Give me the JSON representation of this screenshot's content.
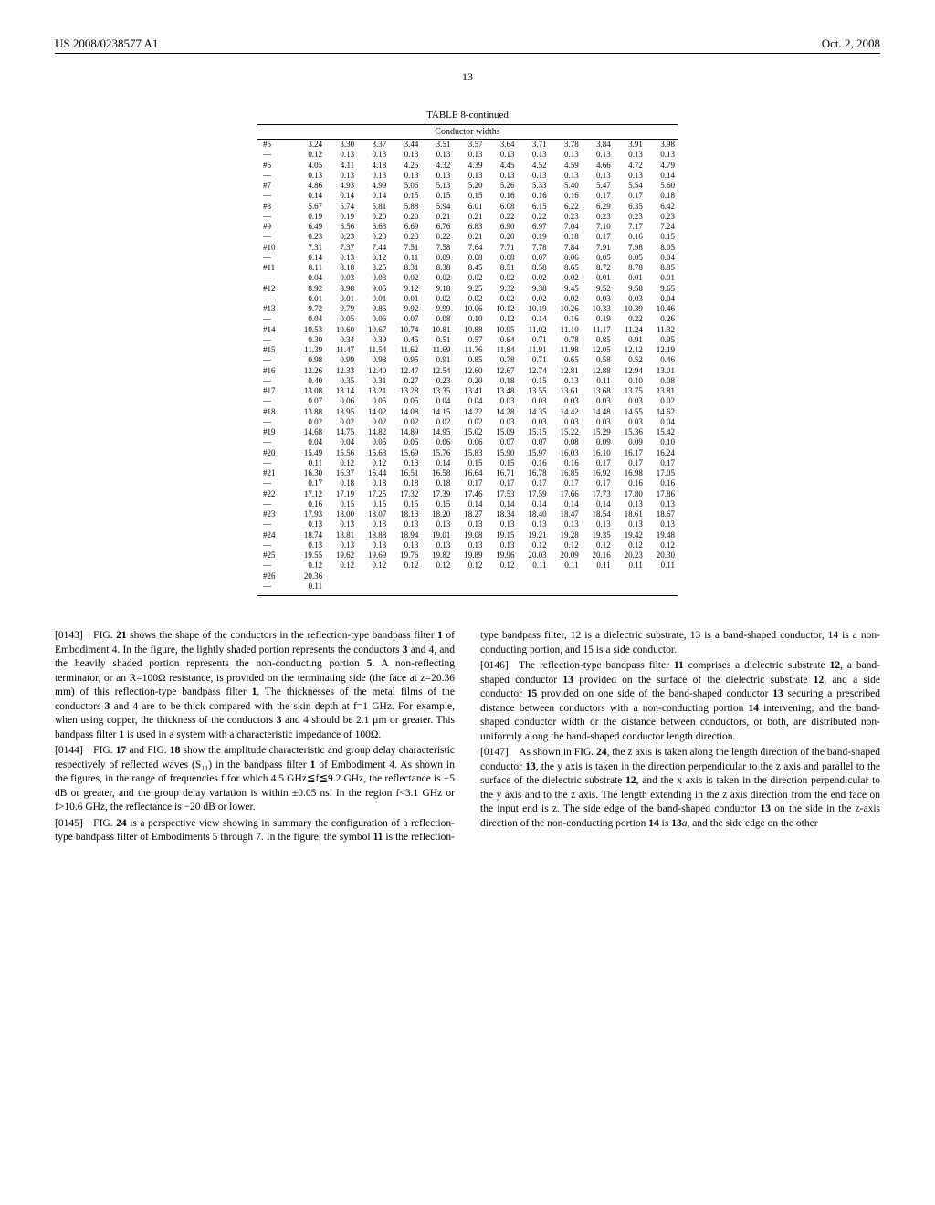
{
  "header": {
    "patent_id": "US 2008/0238577 A1",
    "date": "Oct. 2, 2008"
  },
  "page_number": "13",
  "table": {
    "title": "TABLE 8-continued",
    "subtitle": "Conductor widths",
    "rows": [
      {
        "label": "#5",
        "v": [
          "3.24",
          "3.30",
          "3.37",
          "3.44",
          "3.51",
          "3.57",
          "3.64",
          "3.71",
          "3.78",
          "3.84",
          "3.91",
          "3.98"
        ]
      },
      {
        "label": "—",
        "v": [
          "0.12",
          "0.13",
          "0.13",
          "0.13",
          "0.13",
          "0.13",
          "0.13",
          "0.13",
          "0.13",
          "0.13",
          "0.13",
          "0.13"
        ]
      },
      {
        "label": "#6",
        "v": [
          "4.05",
          "4.11",
          "4.18",
          "4.25",
          "4.32",
          "4.39",
          "4.45",
          "4.52",
          "4.59",
          "4.66",
          "4.72",
          "4.79"
        ]
      },
      {
        "label": "—",
        "v": [
          "0.13",
          "0.13",
          "0.13",
          "0.13",
          "0.13",
          "0.13",
          "0.13",
          "0.13",
          "0.13",
          "0.13",
          "0.13",
          "0.14"
        ]
      },
      {
        "label": "#7",
        "v": [
          "4.86",
          "4.93",
          "4.99",
          "5.06",
          "5.13",
          "5.20",
          "5.26",
          "5.33",
          "5.40",
          "5.47",
          "5.54",
          "5.60"
        ]
      },
      {
        "label": "—",
        "v": [
          "0.14",
          "0.14",
          "0.14",
          "0.15",
          "0.15",
          "0.15",
          "0.16",
          "0.16",
          "0.16",
          "0.17",
          "0.17",
          "0.18"
        ]
      },
      {
        "label": "#8",
        "v": [
          "5.67",
          "5.74",
          "5.81",
          "5.88",
          "5.94",
          "6.01",
          "6.08",
          "6.15",
          "6.22",
          "6.29",
          "6.35",
          "6.42"
        ]
      },
      {
        "label": "—",
        "v": [
          "0.19",
          "0.19",
          "0.20",
          "0.20",
          "0.21",
          "0.21",
          "0.22",
          "0.22",
          "0.23",
          "0.23",
          "0.23",
          "0.23"
        ]
      },
      {
        "label": "#9",
        "v": [
          "6.49",
          "6.56",
          "6.63",
          "6.69",
          "6.76",
          "6.83",
          "6.90",
          "6.97",
          "7.04",
          "7.10",
          "7.17",
          "7.24"
        ]
      },
      {
        "label": "—",
        "v": [
          "0.23",
          "0.23",
          "0.23",
          "0.23",
          "0.22",
          "0.21",
          "0.20",
          "0.19",
          "0.18",
          "0.17",
          "0.16",
          "0.15"
        ]
      },
      {
        "label": "#10",
        "v": [
          "7.31",
          "7.37",
          "7.44",
          "7.51",
          "7.58",
          "7.64",
          "7.71",
          "7.78",
          "7.84",
          "7.91",
          "7.98",
          "8.05"
        ]
      },
      {
        "label": "—",
        "v": [
          "0.14",
          "0.13",
          "0.12",
          "0.11",
          "0.09",
          "0.08",
          "0.08",
          "0.07",
          "0.06",
          "0.05",
          "0.05",
          "0.04"
        ]
      },
      {
        "label": "#11",
        "v": [
          "8.11",
          "8.18",
          "8.25",
          "8.31",
          "8.38",
          "8.45",
          "8.51",
          "8.58",
          "8.65",
          "8.72",
          "8.78",
          "8.85"
        ]
      },
      {
        "label": "—",
        "v": [
          "0.04",
          "0.03",
          "0.03",
          "0.02",
          "0.02",
          "0.02",
          "0.02",
          "0.02",
          "0.02",
          "0.01",
          "0.01",
          "0.01"
        ]
      },
      {
        "label": "#12",
        "v": [
          "8.92",
          "8.98",
          "9.05",
          "9.12",
          "9.18",
          "9.25",
          "9.32",
          "9.38",
          "9.45",
          "9.52",
          "9.58",
          "9.65"
        ]
      },
      {
        "label": "—",
        "v": [
          "0.01",
          "0.01",
          "0.01",
          "0.01",
          "0.02",
          "0.02",
          "0.02",
          "0.02",
          "0.02",
          "0.03",
          "0.03",
          "0.04"
        ]
      },
      {
        "label": "#13",
        "v": [
          "9.72",
          "9.79",
          "9.85",
          "9.92",
          "9.99",
          "10.06",
          "10.12",
          "10.19",
          "10.26",
          "10.33",
          "10.39",
          "10.46"
        ]
      },
      {
        "label": "—",
        "v": [
          "0.04",
          "0.05",
          "0.06",
          "0.07",
          "0.08",
          "0.10",
          "0.12",
          "0.14",
          "0.16",
          "0.19",
          "0.22",
          "0.26"
        ]
      },
      {
        "label": "#14",
        "v": [
          "10.53",
          "10.60",
          "10.67",
          "10.74",
          "10.81",
          "10.88",
          "10.95",
          "11.02",
          "11.10",
          "11.17",
          "11.24",
          "11.32"
        ]
      },
      {
        "label": "—",
        "v": [
          "0.30",
          "0.34",
          "0.39",
          "0.45",
          "0.51",
          "0.57",
          "0.64",
          "0.71",
          "0.78",
          "0.85",
          "0.91",
          "0.95"
        ]
      },
      {
        "label": "#15",
        "v": [
          "11.39",
          "11.47",
          "11.54",
          "11.62",
          "11.69",
          "11.76",
          "11.84",
          "11.91",
          "11.98",
          "12.05",
          "12.12",
          "12.19"
        ]
      },
      {
        "label": "—",
        "v": [
          "0.98",
          "0.99",
          "0.98",
          "0.95",
          "0.91",
          "0.85",
          "0.78",
          "0.71",
          "0.65",
          "0.58",
          "0.52",
          "0.46"
        ]
      },
      {
        "label": "#16",
        "v": [
          "12.26",
          "12.33",
          "12.40",
          "12.47",
          "12.54",
          "12.60",
          "12.67",
          "12.74",
          "12.81",
          "12.88",
          "12.94",
          "13.01"
        ]
      },
      {
        "label": "—",
        "v": [
          "0.40",
          "0.35",
          "0.31",
          "0.27",
          "0.23",
          "0.20",
          "0.18",
          "0.15",
          "0.13",
          "0.11",
          "0.10",
          "0.08"
        ]
      },
      {
        "label": "#17",
        "v": [
          "13.08",
          "13.14",
          "13.21",
          "13.28",
          "13.35",
          "13.41",
          "13.48",
          "13.55",
          "13.61",
          "13.68",
          "13.75",
          "13.81"
        ]
      },
      {
        "label": "—",
        "v": [
          "0.07",
          "0.06",
          "0.05",
          "0.05",
          "0.04",
          "0.04",
          "0.03",
          "0.03",
          "0.03",
          "0.03",
          "0.03",
          "0.02"
        ]
      },
      {
        "label": "#18",
        "v": [
          "13.88",
          "13.95",
          "14.02",
          "14.08",
          "14.15",
          "14.22",
          "14.28",
          "14.35",
          "14.42",
          "14.48",
          "14.55",
          "14.62"
        ]
      },
      {
        "label": "—",
        "v": [
          "0.02",
          "0.02",
          "0.02",
          "0.02",
          "0.02",
          "0.02",
          "0.03",
          "0.03",
          "0.03",
          "0.03",
          "0.03",
          "0.04"
        ]
      },
      {
        "label": "#19",
        "v": [
          "14.68",
          "14.75",
          "14.82",
          "14.89",
          "14.95",
          "15.02",
          "15.09",
          "15.15",
          "15.22",
          "15.29",
          "15.36",
          "15.42"
        ]
      },
      {
        "label": "—",
        "v": [
          "0.04",
          "0.04",
          "0.05",
          "0.05",
          "0.06",
          "0.06",
          "0.07",
          "0.07",
          "0.08",
          "0.09",
          "0.09",
          "0.10"
        ]
      },
      {
        "label": "#20",
        "v": [
          "15.49",
          "15.56",
          "15.63",
          "15.69",
          "15.76",
          "15.83",
          "15.90",
          "15.97",
          "16.03",
          "16.10",
          "16.17",
          "16.24"
        ]
      },
      {
        "label": "—",
        "v": [
          "0.11",
          "0.12",
          "0.12",
          "0.13",
          "0.14",
          "0.15",
          "0.15",
          "0.16",
          "0.16",
          "0.17",
          "0.17",
          "0.17"
        ]
      },
      {
        "label": "#21",
        "v": [
          "16.30",
          "16.37",
          "16.44",
          "16.51",
          "16.58",
          "16.64",
          "16.71",
          "16.78",
          "16.85",
          "16.92",
          "16.98",
          "17.05"
        ]
      },
      {
        "label": "—",
        "v": [
          "0.17",
          "0.18",
          "0.18",
          "0.18",
          "0.18",
          "0.17",
          "0.17",
          "0.17",
          "0.17",
          "0.17",
          "0.16",
          "0.16"
        ]
      },
      {
        "label": "#22",
        "v": [
          "17.12",
          "17.19",
          "17.25",
          "17.32",
          "17.39",
          "17.46",
          "17.53",
          "17.59",
          "17.66",
          "17.73",
          "17.80",
          "17.86"
        ]
      },
      {
        "label": "—",
        "v": [
          "0.16",
          "0.15",
          "0.15",
          "0.15",
          "0.15",
          "0.14",
          "0.14",
          "0.14",
          "0.14",
          "0.14",
          "0.13",
          "0.13"
        ]
      },
      {
        "label": "#23",
        "v": [
          "17.93",
          "18.00",
          "18.07",
          "18.13",
          "18.20",
          "18.27",
          "18.34",
          "18.40",
          "18.47",
          "18.54",
          "18.61",
          "18.67"
        ]
      },
      {
        "label": "—",
        "v": [
          "0.13",
          "0.13",
          "0.13",
          "0.13",
          "0.13",
          "0.13",
          "0.13",
          "0.13",
          "0.13",
          "0.13",
          "0.13",
          "0.13"
        ]
      },
      {
        "label": "#24",
        "v": [
          "18.74",
          "18.81",
          "18.88",
          "18.94",
          "19.01",
          "19.08",
          "19.15",
          "19.21",
          "19.28",
          "19.35",
          "19.42",
          "19.48"
        ]
      },
      {
        "label": "—",
        "v": [
          "0.13",
          "0.13",
          "0.13",
          "0.13",
          "0.13",
          "0.13",
          "0.13",
          "0.12",
          "0.12",
          "0.12",
          "0.12",
          "0.12"
        ]
      },
      {
        "label": "#25",
        "v": [
          "19.55",
          "19.62",
          "19.69",
          "19.76",
          "19.82",
          "19.89",
          "19.96",
          "20.03",
          "20.09",
          "20.16",
          "20.23",
          "20.30"
        ]
      },
      {
        "label": "—",
        "v": [
          "0.12",
          "0.12",
          "0.12",
          "0.12",
          "0.12",
          "0.12",
          "0.12",
          "0.11",
          "0.11",
          "0.11",
          "0.11",
          "0.11"
        ]
      },
      {
        "label": "#26",
        "v": [
          "20.36",
          "",
          "",
          "",
          "",
          "",
          "",
          "",
          "",
          "",
          "",
          ""
        ]
      },
      {
        "label": "—",
        "v": [
          "0.11",
          "",
          "",
          "",
          "",
          "",
          "",
          "",
          "",
          "",
          "",
          ""
        ]
      }
    ]
  },
  "paragraphs": [
    {
      "num": "[0143]",
      "text": "FIG. 21 shows the shape of the conductors in the reflection-type bandpass filter 1 of Embodiment 4. In the figure, the lightly shaded portion represents the conductors 3 and 4, and the heavily shaded portion represents the non-conducting portion 5. A non-reflecting terminator, or an R=100Ω resistance, is provided on the terminating side (the face at z=20.36 mm) of this reflection-type bandpass filter 1. The thicknesses of the metal films of the conductors 3 and 4 are to be thick compared with the skin depth at f=1 GHz. For example, when using copper, the thickness of the conductors 3 and 4 should be 2.1 µm or greater. This bandpass filter 1 is used in a system with a characteristic impedance of 100Ω."
    },
    {
      "num": "[0144]",
      "text": "FIG. 17 and FIG. 18 show the amplitude characteristic and group delay characteristic respectively of reflected waves (S₁₁) in the bandpass filter 1 of Embodiment 4. As shown in the figures, in the range of frequencies f for which 4.5 GHz≦f≦9.2 GHz, the reflectance is −5 dB or greater, and the group delay variation is within ±0.05 ns. In the region f<3.1 GHz or f>10.6 GHz, the reflectance is −20 dB or lower."
    },
    {
      "num": "[0145]",
      "text": "FIG. 24 is a perspective view showing in summary the configuration of a reflection-type bandpass filter of Embodiments 5 through 7. In the figure, the symbol 11 is the reflection-type bandpass filter, 12 is a dielectric substrate, 13 is a band-shaped conductor, 14 is a non-conducting portion, and 15 is a side conductor."
    },
    {
      "num": "[0146]",
      "text": "The reflection-type bandpass filter 11 comprises a dielectric substrate 12, a band-shaped conductor 13 provided on the surface of the dielectric substrate 12, and a side conductor 15 provided on one side of the band-shaped conductor 13 securing a prescribed distance between conductors with a non-conducting portion 14 intervening; and the band-shaped conductor width or the distance between conductors, or both, are distributed non-uniformly along the band-shaped conductor length direction."
    },
    {
      "num": "[0147]",
      "text": "As shown in FIG. 24, the z axis is taken along the length direction of the band-shaped conductor 13, the y axis is taken in the direction perpendicular to the z axis and parallel to the surface of the dielectric substrate 12, and the x axis is taken in the direction perpendicular to the y axis and to the z axis. The length extending in the z axis direction from the end face on the input end is z. The side edge of the band-shaped conductor 13 on the side in the z-axis direction of the non-conducting portion 14 is 13a, and the side edge on the other"
    }
  ]
}
